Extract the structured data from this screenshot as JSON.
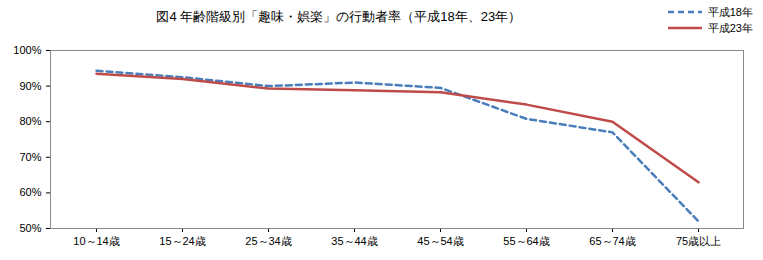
{
  "chart_data": {
    "type": "line",
    "title": "図4  年齢階級別「趣味・娯楽」の行動者率（平成18年、23年）",
    "categories": [
      "10～14歳",
      "15～24歳",
      "25～34歳",
      "35～44歳",
      "45～54歳",
      "55～64歳",
      "65～74歳",
      "75歳以上"
    ],
    "series": [
      {
        "name": "平成18年",
        "color": "#4a7ebb",
        "line_style": "dashed",
        "values": [
          94.3,
          92.5,
          90.0,
          91.0,
          89.5,
          80.8,
          77.0,
          52.0
        ]
      },
      {
        "name": "平成23年",
        "color": "#be4b48",
        "line_style": "solid",
        "values": [
          93.5,
          92.0,
          89.3,
          88.8,
          88.3,
          84.8,
          80.0,
          63.0
        ]
      }
    ],
    "ylim": [
      50,
      100
    ],
    "yticks": [
      {
        "value": 50,
        "label": "50%"
      },
      {
        "value": 60,
        "label": "60%"
      },
      {
        "value": 70,
        "label": "70%"
      },
      {
        "value": 80,
        "label": "80%"
      },
      {
        "value": 90,
        "label": "90%"
      },
      {
        "value": 100,
        "label": "100%"
      }
    ],
    "grid": false,
    "legend": "top-right"
  }
}
